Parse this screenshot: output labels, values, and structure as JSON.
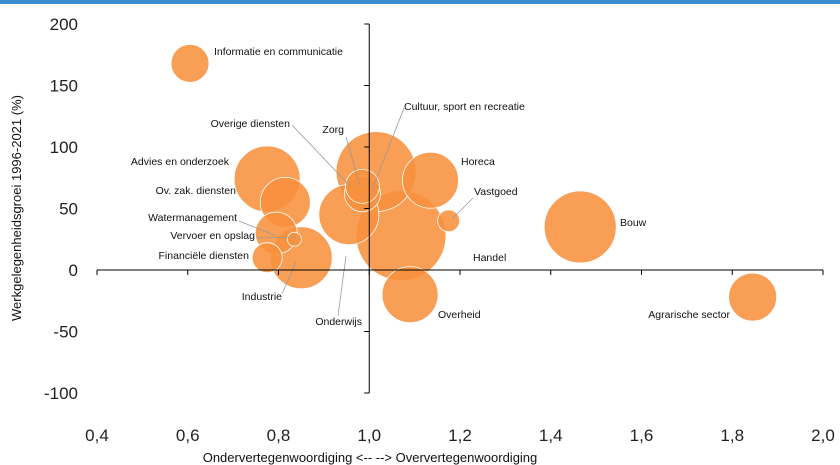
{
  "colors": {
    "bubble": "#f7913d",
    "bubble_stroke": "#ffffff",
    "axis": "#000000",
    "leader": "#9a9a9a",
    "header_fragment": "#3b8fd1"
  },
  "chart_data": {
    "type": "scatter",
    "xlabel": "Ondervertegenwoordiging <--   --> Oververtegenwoordiging",
    "ylabel": "Werkgelegenheidsgroei 1996-2021 (%)",
    "xlim": [
      0.4,
      2.0
    ],
    "ylim": [
      -100,
      200
    ],
    "x_ticks": [
      "0,4",
      "0,6",
      "0,8",
      "1,0",
      "1,2",
      "1,4",
      "1,6",
      "1,8",
      "2,0"
    ],
    "y_ticks": [
      "200",
      "150",
      "100",
      "50",
      "0",
      "-50",
      "-100"
    ],
    "grid": false,
    "series": [
      {
        "points": [
          {
            "label": "Informatie en communicatie",
            "x": 0.605,
            "y": 168,
            "size": 19
          },
          {
            "label": "Cultuur, sport en recreatie",
            "x": 1.015,
            "y": 80,
            "size": 40
          },
          {
            "label": "Overige diensten",
            "x": 0.985,
            "y": 68,
            "size": 17
          },
          {
            "label": "Zorg",
            "x": 0.985,
            "y": 62,
            "size": 18
          },
          {
            "label": "Horeca",
            "x": 1.135,
            "y": 73,
            "size": 28
          },
          {
            "label": "Advies en onderzoek",
            "x": 0.775,
            "y": 74,
            "size": 33
          },
          {
            "label": "Ov. zak. diensten",
            "x": 0.815,
            "y": 55,
            "size": 25
          },
          {
            "label": "Vastgoed",
            "x": 1.175,
            "y": 40,
            "size": 11
          },
          {
            "label": "Bouw",
            "x": 1.465,
            "y": 35,
            "size": 36
          },
          {
            "label": "Watermanagement",
            "x": 0.795,
            "y": 30,
            "size": 21
          },
          {
            "label": "Vervoer en opslag",
            "x": 0.835,
            "y": 25,
            "size": 7
          },
          {
            "label": "Financiële diensten",
            "x": 0.775,
            "y": 10,
            "size": 15
          },
          {
            "label": "Industrie",
            "x": 0.85,
            "y": 10,
            "size": 31
          },
          {
            "label": "Onderwijs",
            "x": 0.955,
            "y": 45,
            "size": 30
          },
          {
            "label": "Handel",
            "x": 1.07,
            "y": 28,
            "size": 45
          },
          {
            "label": "Overheid",
            "x": 1.09,
            "y": -20,
            "size": 28
          },
          {
            "label": "Agrarische sector",
            "x": 1.845,
            "y": -22,
            "size": 24
          }
        ]
      }
    ]
  }
}
